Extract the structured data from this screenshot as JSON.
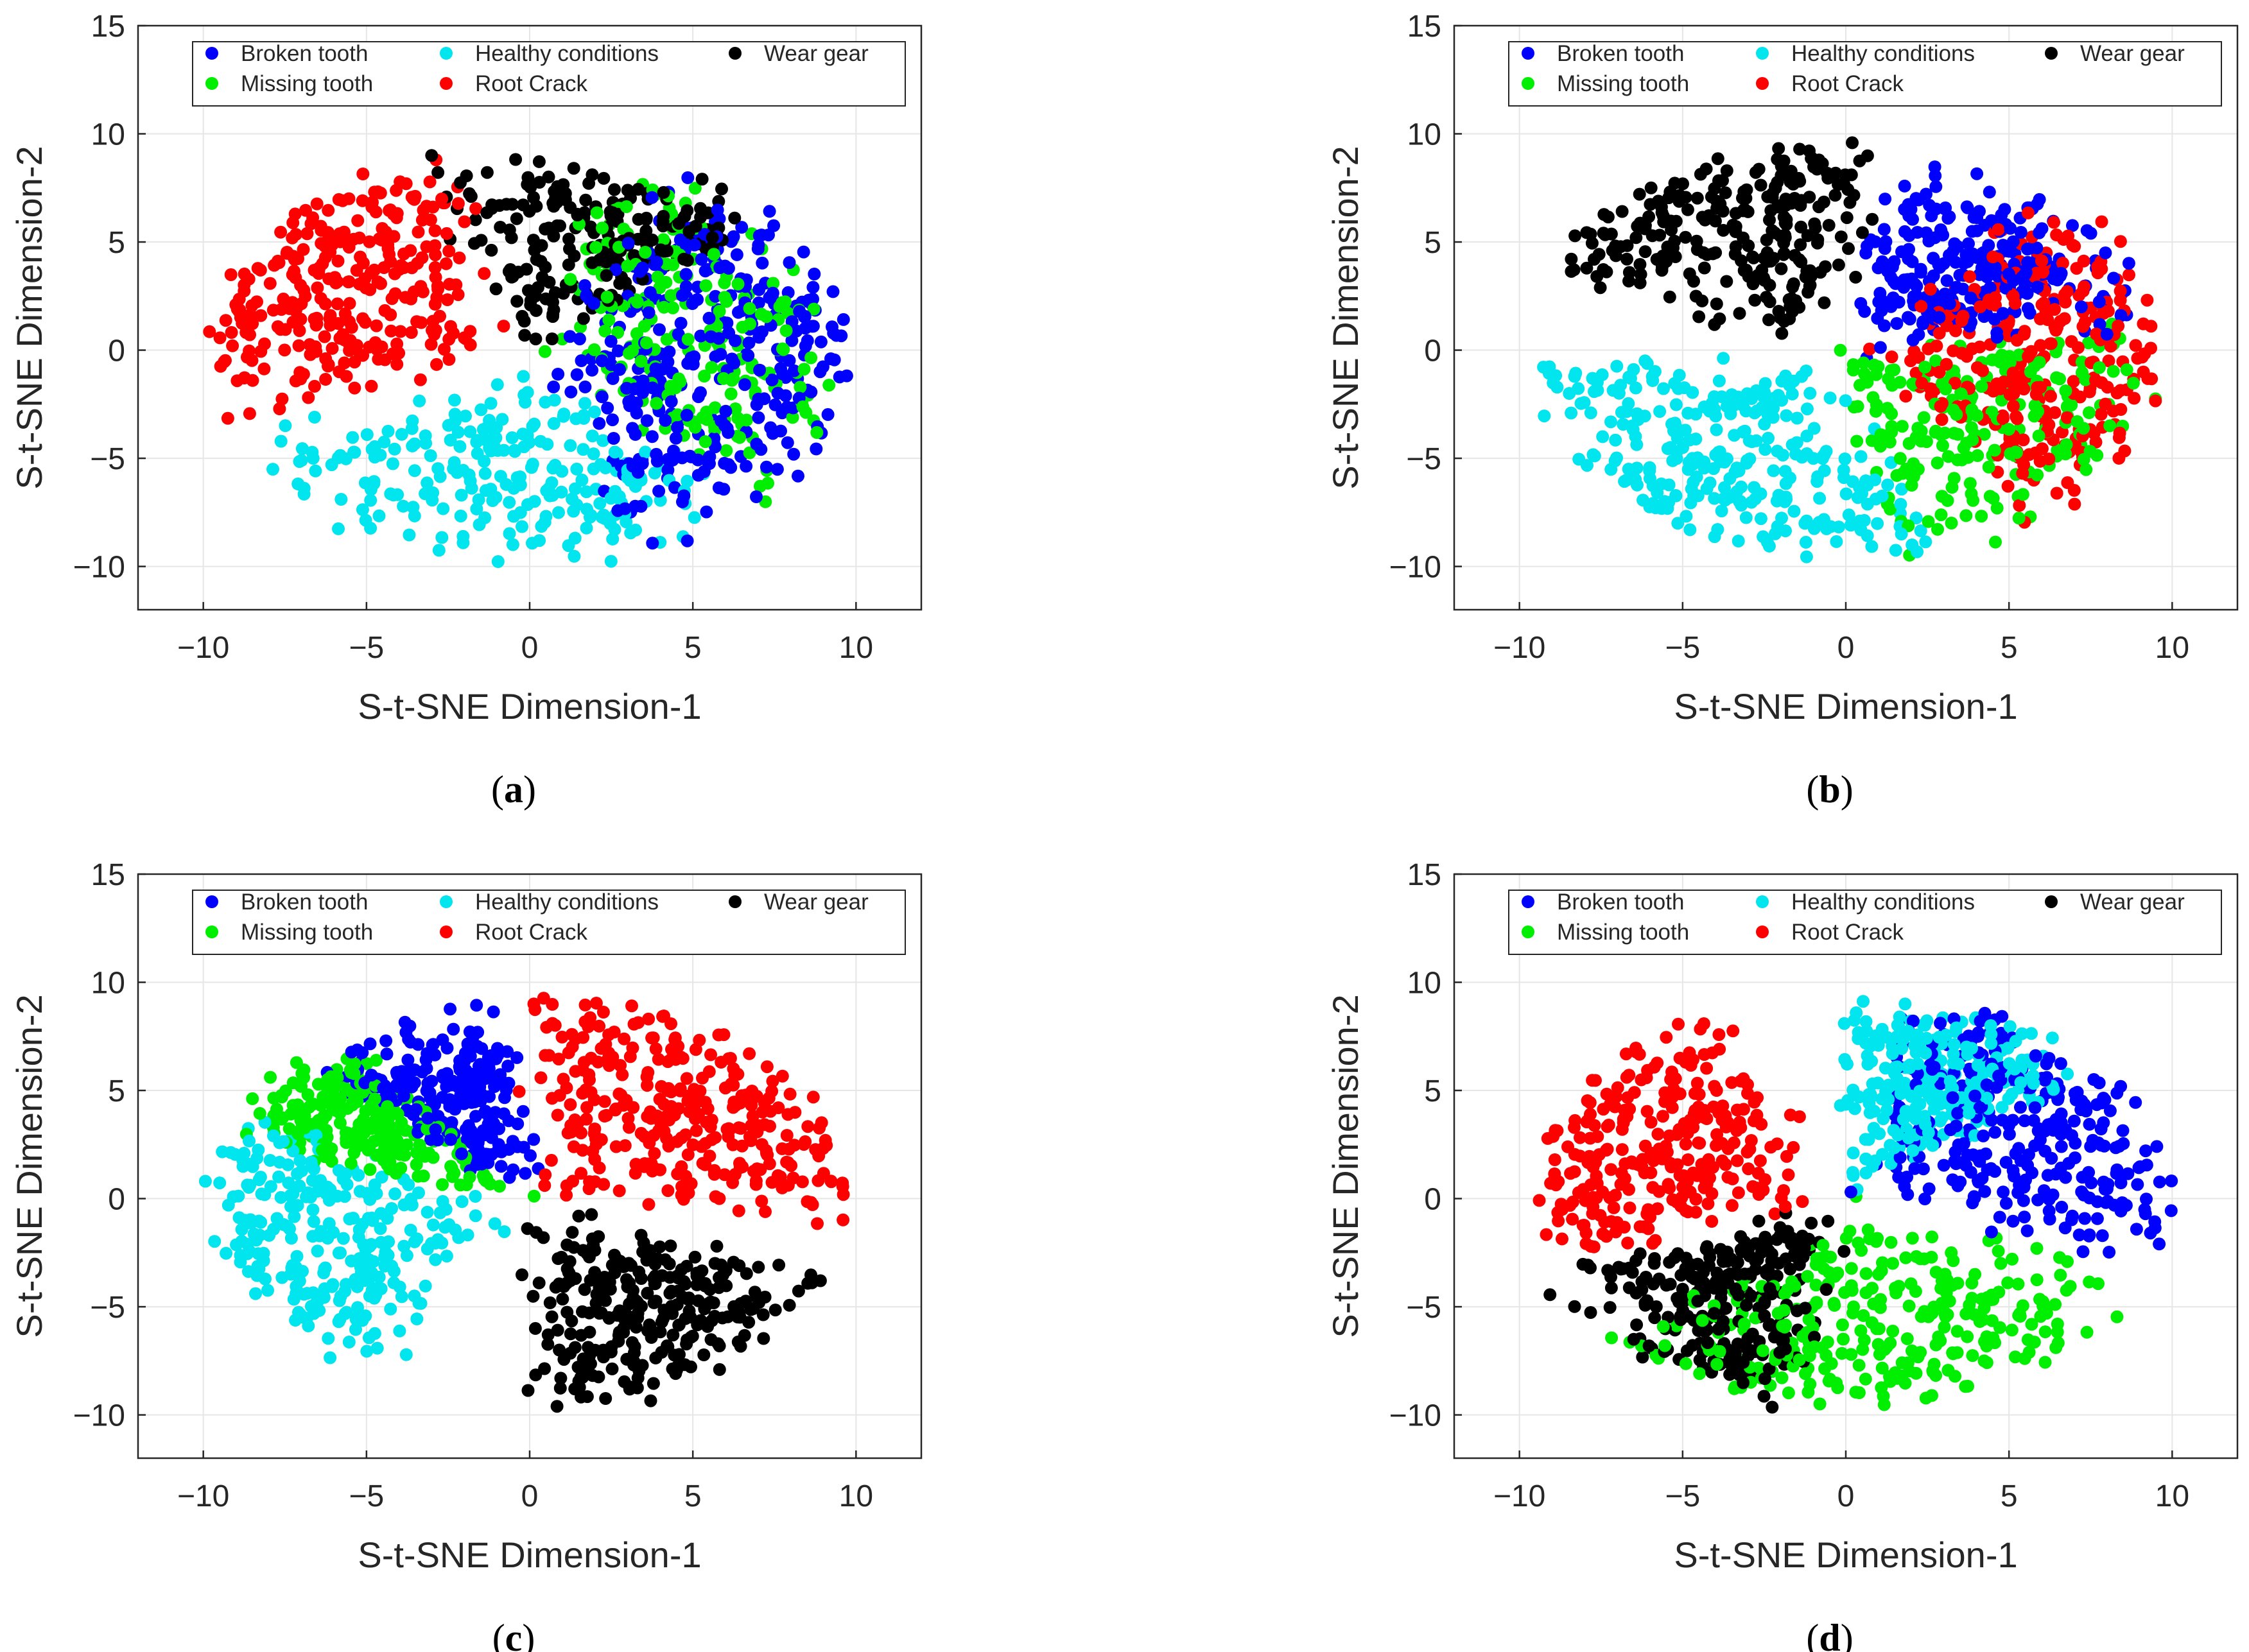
{
  "figure": {
    "panel_labels": [
      "a",
      "b",
      "c",
      "d"
    ]
  },
  "chart_data": [
    {
      "type": "scatter",
      "panel": "a",
      "caption": "(a)",
      "xlabel": "S-t-SNE Dimension-1",
      "ylabel": "S-t-SNE Dimension-2",
      "xlim": [
        -12,
        12
      ],
      "ylim": [
        -12,
        15
      ],
      "xticks": [
        -10,
        -5,
        0,
        5,
        10
      ],
      "yticks": [
        -10,
        -5,
        0,
        5,
        10,
        15
      ],
      "grid": true,
      "legend_position": "top",
      "series": [
        {
          "name": "Broken tooth",
          "color": "#0000ff",
          "cluster": {
            "center": [
              6.0,
              0.0
            ],
            "angle_from": -70,
            "angle_to": 65,
            "count": 340
          }
        },
        {
          "name": "Healthy conditions",
          "color": "#00e5ee",
          "cluster": {
            "center": [
              -1.0,
              -6.0
            ],
            "angle_from": -160,
            "angle_to": -45,
            "count": 240
          }
        },
        {
          "name": "Wear gear",
          "color": "#000000",
          "cluster": {
            "center": [
              -1.0,
              2.0
            ],
            "angle_from": 40,
            "angle_to": 110,
            "count": 200
          }
        },
        {
          "name": "Missing tooth",
          "color": "#00ee00",
          "cluster": {
            "center": [
              2.5,
              0.0
            ],
            "angle_from": -45,
            "angle_to": 75,
            "count": 220
          }
        },
        {
          "name": "Root Crack",
          "color": "#ff0000",
          "cluster": {
            "center": [
              -6.5,
              3.0
            ],
            "angle_from": 100,
            "angle_to": 200,
            "count": 300
          }
        }
      ]
    },
    {
      "type": "scatter",
      "panel": "b",
      "caption": "(b)",
      "xlabel": "S-t-SNE Dimension-1",
      "ylabel": "S-t-SNE Dimension-2",
      "xlim": [
        -12,
        12
      ],
      "ylim": [
        -12,
        15
      ],
      "xticks": [
        -10,
        -5,
        0,
        5,
        10
      ],
      "yticks": [
        -10,
        -5,
        0,
        5,
        10,
        15
      ],
      "grid": true,
      "legend_position": "top",
      "series": [
        {
          "name": "Broken tooth",
          "color": "#0000ff",
          "cluster": {
            "center": [
              1.5,
              2.0
            ],
            "angle_from": 10,
            "angle_to": 80,
            "count": 260
          }
        },
        {
          "name": "Healthy conditions",
          "color": "#00e5ee",
          "cluster": {
            "center": [
              -4.0,
              -5.0
            ],
            "angle_from": 180,
            "angle_to": 290,
            "count": 300
          }
        },
        {
          "name": "Wear gear",
          "color": "#000000",
          "cluster": {
            "center": [
              -4.0,
              6.0
            ],
            "angle_from": 80,
            "angle_to": 160,
            "count": 260
          }
        },
        {
          "name": "Missing tooth",
          "color": "#00ee00",
          "cluster": {
            "center": [
              0.5,
              -2.0
            ],
            "angle_from": -80,
            "angle_to": 10,
            "count": 220
          }
        },
        {
          "name": "Root Crack",
          "color": "#ff0000",
          "cluster": {
            "center": [
              7.0,
              0.0
            ],
            "angle_from": -55,
            "angle_to": 55,
            "count": 300
          }
        }
      ]
    },
    {
      "type": "scatter",
      "panel": "c",
      "caption": "(c)",
      "xlabel": "S-t-SNE Dimension-1",
      "ylabel": "S-t-SNE Dimension-2",
      "xlim": [
        -12,
        12
      ],
      "ylim": [
        -12,
        15
      ],
      "xticks": [
        -10,
        -5,
        0,
        5,
        10
      ],
      "yticks": [
        -10,
        -5,
        0,
        5,
        10,
        15
      ],
      "grid": true,
      "legend_position": "top",
      "series": [
        {
          "name": "Broken tooth",
          "color": "#0000ff",
          "cluster": {
            "center": [
              1.5,
              2.0
            ],
            "angle_from": 100,
            "angle_to": 140,
            "count": 240
          }
        },
        {
          "name": "Healthy conditions",
          "color": "#00e5ee",
          "cluster": {
            "center": [
              -7.0,
              -1.5
            ],
            "angle_from": 150,
            "angle_to": 240,
            "count": 280
          }
        },
        {
          "name": "Wear gear",
          "color": "#000000",
          "cluster": {
            "center": [
              3.0,
              -5.5
            ],
            "angle_from": -90,
            "angle_to": -20,
            "count": 280
          }
        },
        {
          "name": "Missing tooth",
          "color": "#00ee00",
          "cluster": {
            "center": [
              -3.5,
              1.5
            ],
            "angle_from": 125,
            "angle_to": 160,
            "count": 240
          }
        },
        {
          "name": "Root Crack",
          "color": "#ff0000",
          "cluster": {
            "center": [
              5.0,
              5.0
            ],
            "angle_from": -10,
            "angle_to": 95,
            "count": 320
          }
        }
      ]
    },
    {
      "type": "scatter",
      "panel": "d",
      "caption": "(d)",
      "xlabel": "S-t-SNE Dimension-1",
      "ylabel": "S-t-SNE Dimension-2",
      "xlim": [
        -12,
        12
      ],
      "ylim": [
        -12,
        15
      ],
      "xticks": [
        -10,
        -5,
        0,
        5,
        10
      ],
      "yticks": [
        -10,
        -5,
        0,
        5,
        10,
        15
      ],
      "grid": true,
      "legend_position": "top",
      "series": [
        {
          "name": "Broken tooth",
          "color": "#0000ff",
          "cluster": {
            "center": [
              6.0,
              4.0
            ],
            "angle_from": -20,
            "angle_to": 80,
            "count": 300
          }
        },
        {
          "name": "Healthy conditions",
          "color": "#00e5ee",
          "cluster": {
            "center": [
              2.0,
              4.0
            ],
            "angle_from": 40,
            "angle_to": 90,
            "count": 260
          }
        },
        {
          "name": "Wear gear",
          "color": "#000000",
          "cluster": {
            "center": [
              -2.5,
              -2.0
            ],
            "angle_from": 200,
            "angle_to": 260,
            "count": 260
          }
        },
        {
          "name": "Missing tooth",
          "color": "#00ee00",
          "cluster": {
            "center": [
              1.0,
              -6.5
            ],
            "angle_from": -140,
            "angle_to": -20,
            "count": 300
          }
        },
        {
          "name": "Root Crack",
          "color": "#ff0000",
          "cluster": {
            "center": [
              -6.5,
              2.0
            ],
            "angle_from": 110,
            "angle_to": 200,
            "count": 280
          }
        }
      ]
    }
  ]
}
